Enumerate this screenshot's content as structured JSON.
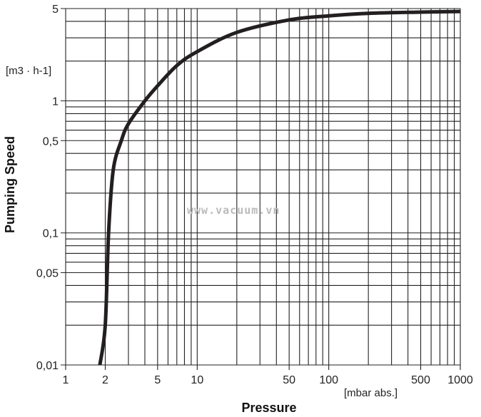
{
  "chart_data": {
    "type": "line",
    "title": "",
    "xlabel": "Pressure",
    "xunit": "[mbar abs.]",
    "ylabel": "Pumping Speed",
    "yunit": "[m3 · h-1]",
    "xscale": "log",
    "yscale": "log",
    "xlim": [
      1,
      1000
    ],
    "ylim": [
      0.01,
      5
    ],
    "grid": true,
    "x_ticks": [
      1,
      2,
      5,
      10,
      50,
      100,
      500,
      1000
    ],
    "x_tick_labels": [
      "1",
      "2",
      "5",
      "10",
      "50",
      "100",
      "500",
      "1000"
    ],
    "y_ticks": [
      0.01,
      0.05,
      0.1,
      0.5,
      1,
      5
    ],
    "y_tick_labels": [
      "0,01",
      "0,05",
      "0,1",
      "0,5",
      "1",
      "5"
    ],
    "watermark": "www.vacuum.vn",
    "series": [
      {
        "name": "Pumping speed",
        "color": "#231f20",
        "x": [
          1.82,
          2,
          2.12,
          2.3,
          2.65,
          3,
          4,
          5,
          7,
          10,
          20,
          50,
          100,
          200,
          500,
          1000
        ],
        "y": [
          0.01,
          0.02,
          0.1,
          0.3,
          0.5,
          0.67,
          1.0,
          1.3,
          1.85,
          2.36,
          3.3,
          4.1,
          4.4,
          4.6,
          4.7,
          4.75
        ]
      }
    ]
  }
}
